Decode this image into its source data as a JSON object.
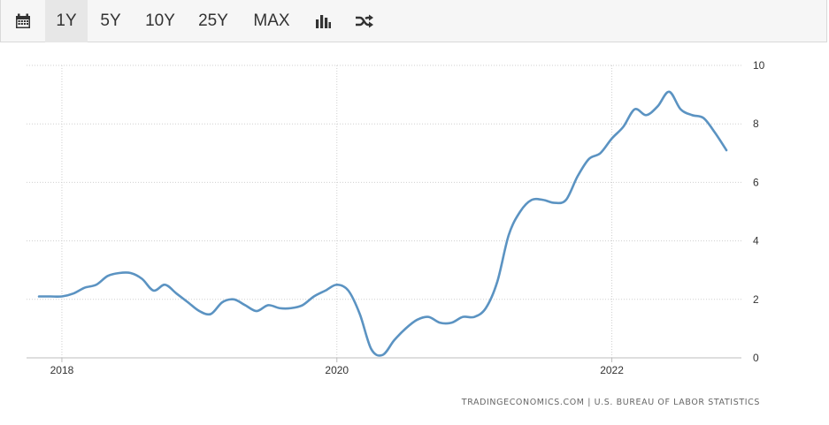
{
  "toolbar": {
    "calendar_icon": "calendar-icon",
    "ranges": [
      "1Y",
      "5Y",
      "10Y",
      "25Y",
      "MAX"
    ],
    "active_range": "1Y",
    "bar_chart_icon": "bar-chart-icon",
    "shuffle_icon": "shuffle-icon"
  },
  "colors": {
    "line": "#5b93c2",
    "grid": "#cfcfcf",
    "toolbar_bg": "#f6f6f6"
  },
  "source": "TRADINGECONOMICS.COM | U.S. BUREAU OF LABOR STATISTICS",
  "chart_data": {
    "type": "line",
    "title": "",
    "xlabel": "",
    "ylabel": "",
    "x_ticks": [
      "2018",
      "2020",
      "2022"
    ],
    "y_ticks": [
      "0",
      "2",
      "4",
      "6",
      "8",
      "10"
    ],
    "ylim": [
      0,
      10
    ],
    "xlim": [
      "2017-12",
      "2022-12"
    ],
    "grid": true,
    "y_axis_side": "right",
    "series": [
      {
        "x": [
          "2017-11",
          "2017-12",
          "2018-01",
          "2018-02",
          "2018-03",
          "2018-04",
          "2018-05",
          "2018-06",
          "2018-07",
          "2018-08",
          "2018-09",
          "2018-10",
          "2018-11",
          "2018-12",
          "2019-01",
          "2019-02",
          "2019-03",
          "2019-04",
          "2019-05",
          "2019-06",
          "2019-07",
          "2019-08",
          "2019-09",
          "2019-10",
          "2019-11",
          "2019-12",
          "2020-01",
          "2020-02",
          "2020-03",
          "2020-04",
          "2020-05",
          "2020-06",
          "2020-07",
          "2020-08",
          "2020-09",
          "2020-10",
          "2020-11",
          "2020-12",
          "2021-01",
          "2021-02",
          "2021-03",
          "2021-04",
          "2021-05",
          "2021-06",
          "2021-07",
          "2021-08",
          "2021-09",
          "2021-10",
          "2021-11",
          "2021-12",
          "2022-01",
          "2022-02",
          "2022-03",
          "2022-04",
          "2022-05",
          "2022-06",
          "2022-07",
          "2022-08",
          "2022-09",
          "2022-10",
          "2022-11"
        ],
        "y": [
          2.1,
          2.1,
          2.1,
          2.2,
          2.4,
          2.5,
          2.8,
          2.9,
          2.9,
          2.7,
          2.3,
          2.5,
          2.2,
          1.9,
          1.6,
          1.5,
          1.9,
          2.0,
          1.8,
          1.6,
          1.8,
          1.7,
          1.7,
          1.8,
          2.1,
          2.3,
          2.5,
          2.3,
          1.5,
          0.3,
          0.1,
          0.6,
          1.0,
          1.3,
          1.4,
          1.2,
          1.2,
          1.4,
          1.4,
          1.7,
          2.6,
          4.2,
          5.0,
          5.4,
          5.4,
          5.3,
          5.4,
          6.2,
          6.8,
          7.0,
          7.5,
          7.9,
          8.5,
          8.3,
          8.6,
          9.1,
          8.5,
          8.3,
          8.2,
          7.7,
          7.1
        ]
      }
    ]
  }
}
